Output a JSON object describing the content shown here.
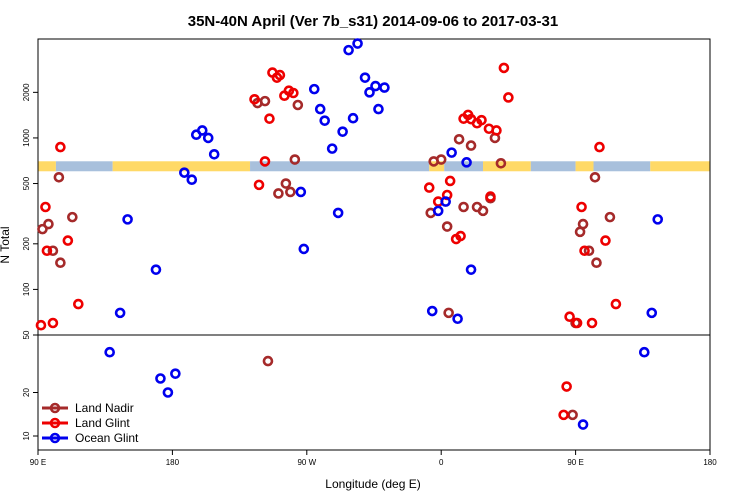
{
  "chart_data": {
    "type": "scatter",
    "title": "35N-40N April (Ver 7b_s31)   2014-09-06 to 2017-03-31",
    "xlabel": "Longitude (deg E)",
    "ylabel": "N Total",
    "y_scale": "log",
    "x_ticks": [
      "90 E",
      "180",
      "90 W",
      "0",
      "90 E",
      "180"
    ],
    "upper_panel": {
      "ylim": [
        50,
        4500
      ],
      "y_ticks": [
        "50",
        "100",
        "200",
        "500",
        "1000",
        "2000"
      ]
    },
    "lower_panel": {
      "ylim": [
        8,
        50
      ],
      "y_ticks": [
        "10",
        "20",
        "50"
      ]
    },
    "band": {
      "y": 650,
      "colors": [
        "#ffd966",
        "#a8c0dc"
      ],
      "segments": [
        {
          "from": 0,
          "to": 12,
          "color": "#ffd966"
        },
        {
          "from": 12,
          "to": 50,
          "color": "#a8c0dc"
        },
        {
          "from": 50,
          "to": 142,
          "color": "#ffd966"
        },
        {
          "from": 142,
          "to": 262,
          "color": "#a8c0dc"
        },
        {
          "from": 262,
          "to": 272,
          "color": "#ffd966"
        },
        {
          "from": 272,
          "to": 298,
          "color": "#a8c0dc"
        },
        {
          "from": 298,
          "to": 330,
          "color": "#ffd966"
        },
        {
          "from": 330,
          "to": 360,
          "color": "#a8c0dc"
        },
        {
          "from": 360,
          "to": 372,
          "color": "#ffd966"
        },
        {
          "from": 372,
          "to": 410,
          "color": "#a8c0dc"
        },
        {
          "from": 410,
          "to": 450,
          "color": "#ffd966"
        }
      ]
    },
    "series": [
      {
        "name": "Land Nadir",
        "color": "#a52a2a",
        "points": [
          [
            3,
            250
          ],
          [
            7,
            270
          ],
          [
            10,
            180
          ],
          [
            14,
            550
          ],
          [
            15,
            150
          ],
          [
            23,
            300
          ],
          [
            154,
            33
          ],
          [
            152,
            1750
          ],
          [
            147,
            1700
          ],
          [
            161,
            430
          ],
          [
            166,
            500
          ],
          [
            169,
            440
          ],
          [
            172,
            720
          ],
          [
            174,
            1650
          ],
          [
            263,
            320
          ],
          [
            265,
            700
          ],
          [
            270,
            720
          ],
          [
            274,
            260
          ],
          [
            275,
            70
          ],
          [
            282,
            980
          ],
          [
            285,
            350
          ],
          [
            290,
            890
          ],
          [
            294,
            350
          ],
          [
            298,
            330
          ],
          [
            306,
            1000
          ],
          [
            310,
            680
          ],
          [
            303,
            400
          ],
          [
            358,
            14
          ],
          [
            360,
            60
          ],
          [
            363,
            240
          ],
          [
            365,
            270
          ],
          [
            369,
            180
          ],
          [
            373,
            550
          ],
          [
            374,
            150
          ],
          [
            383,
            300
          ]
        ]
      },
      {
        "name": "Land Glint",
        "color": "#ee0000",
        "points": [
          [
            2,
            58
          ],
          [
            5,
            350
          ],
          [
            6,
            180
          ],
          [
            10,
            60
          ],
          [
            15,
            870
          ],
          [
            20,
            210
          ],
          [
            27,
            80
          ],
          [
            145,
            1800
          ],
          [
            148,
            490
          ],
          [
            152,
            700
          ],
          [
            155,
            1340
          ],
          [
            157,
            2700
          ],
          [
            160,
            2500
          ],
          [
            162,
            2600
          ],
          [
            165,
            1900
          ],
          [
            168,
            2050
          ],
          [
            171,
            1980
          ],
          [
            262,
            470
          ],
          [
            268,
            380
          ],
          [
            274,
            420
          ],
          [
            276,
            520
          ],
          [
            280,
            215
          ],
          [
            283,
            225
          ],
          [
            285,
            1340
          ],
          [
            288,
            1420
          ],
          [
            290,
            1330
          ],
          [
            294,
            1250
          ],
          [
            297,
            1310
          ],
          [
            302,
            1150
          ],
          [
            307,
            1120
          ],
          [
            312,
            2900
          ],
          [
            315,
            1850
          ],
          [
            303,
            410
          ],
          [
            352,
            14
          ],
          [
            354,
            22
          ],
          [
            356,
            66
          ],
          [
            361,
            60
          ],
          [
            364,
            350
          ],
          [
            366,
            180
          ],
          [
            371,
            60
          ],
          [
            376,
            870
          ],
          [
            380,
            210
          ],
          [
            387,
            80
          ]
        ]
      },
      {
        "name": "Ocean Glint",
        "color": "#0000ee",
        "points": [
          [
            48,
            38
          ],
          [
            55,
            70
          ],
          [
            60,
            290
          ],
          [
            79,
            135
          ],
          [
            82,
            25
          ],
          [
            87,
            20
          ],
          [
            92,
            27
          ],
          [
            98,
            590
          ],
          [
            103,
            530
          ],
          [
            106,
            1050
          ],
          [
            110,
            1120
          ],
          [
            114,
            1000
          ],
          [
            118,
            780
          ],
          [
            176,
            440
          ],
          [
            178,
            185
          ],
          [
            185,
            2100
          ],
          [
            189,
            1550
          ],
          [
            192,
            1300
          ],
          [
            197,
            850
          ],
          [
            201,
            320
          ],
          [
            204,
            1100
          ],
          [
            208,
            3800
          ],
          [
            211,
            1350
          ],
          [
            214,
            4200
          ],
          [
            219,
            2500
          ],
          [
            222,
            2000
          ],
          [
            226,
            2200
          ],
          [
            228,
            1550
          ],
          [
            232,
            2150
          ],
          [
            264,
            72
          ],
          [
            268,
            330
          ],
          [
            273,
            380
          ],
          [
            277,
            800
          ],
          [
            281,
            64
          ],
          [
            287,
            690
          ],
          [
            290,
            135
          ],
          [
            365,
            12
          ],
          [
            406,
            38
          ],
          [
            411,
            70
          ],
          [
            415,
            290
          ]
        ]
      }
    ],
    "legend": {
      "position": "bottom-left",
      "entries": [
        "Land Nadir",
        "Land Glint",
        "Ocean Glint"
      ]
    }
  }
}
